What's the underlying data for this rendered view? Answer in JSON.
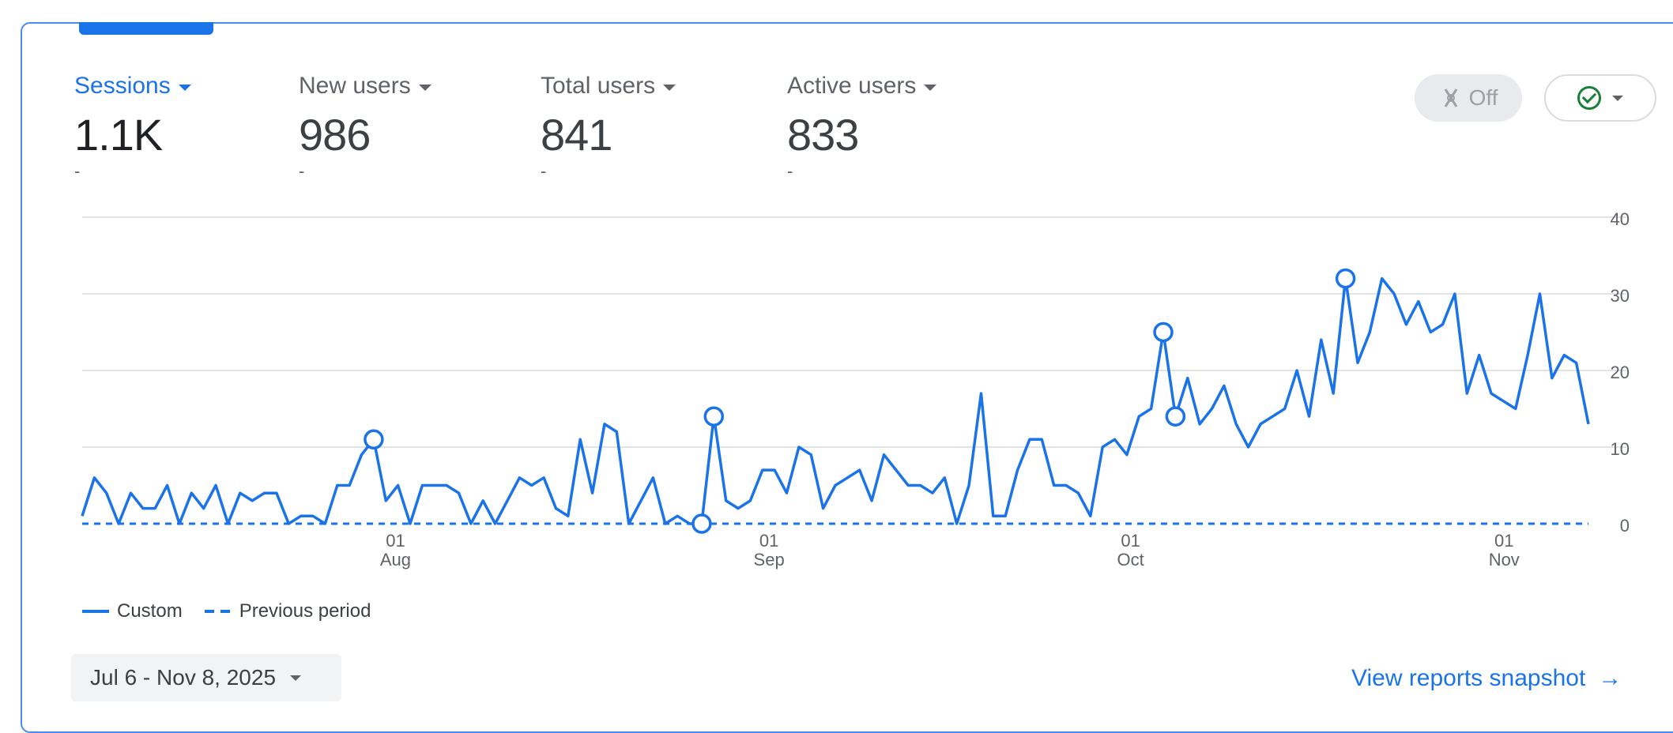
{
  "metrics": [
    {
      "label": "Sessions",
      "value": "1.1K",
      "change": "-",
      "active": true
    },
    {
      "label": "New users",
      "value": "986",
      "change": "-",
      "active": false
    },
    {
      "label": "Total users",
      "value": "841",
      "change": "-",
      "active": false
    },
    {
      "label": "Active users",
      "value": "833",
      "change": "-",
      "active": false
    }
  ],
  "toolbar": {
    "anomaly_toggle_label": "Off"
  },
  "colors": {
    "accent": "#1a73e8",
    "check": "#188038"
  },
  "chart_data": {
    "type": "line",
    "x_start": "2025-07-06",
    "x_end": "2025-11-08",
    "x_ticks": [
      {
        "day": "01",
        "month": "Aug"
      },
      {
        "day": "01",
        "month": "Sep"
      },
      {
        "day": "01",
        "month": "Oct"
      },
      {
        "day": "01",
        "month": "Nov"
      }
    ],
    "y_ticks": [
      "40",
      "30",
      "20",
      "10",
      "0"
    ],
    "ylim": [
      0,
      40
    ],
    "grid": true,
    "legend_position": "bottom-left",
    "series": [
      {
        "name": "Custom",
        "style": "solid",
        "values": [
          1,
          6,
          4,
          0,
          4,
          2,
          2,
          5,
          0,
          4,
          2,
          5,
          0,
          4,
          3,
          4,
          4,
          0,
          1,
          1,
          0,
          5,
          5,
          9,
          11,
          3,
          5,
          0,
          5,
          5,
          5,
          4,
          0,
          3,
          0,
          3,
          6,
          5,
          6,
          2,
          1,
          11,
          4,
          13,
          12,
          0,
          3,
          6,
          0,
          1,
          0,
          0,
          14,
          3,
          2,
          3,
          7,
          7,
          4,
          10,
          9,
          2,
          5,
          6,
          7,
          3,
          9,
          7,
          5,
          5,
          4,
          6,
          0,
          5,
          17,
          1,
          1,
          7,
          11,
          11,
          5,
          5,
          4,
          1,
          10,
          11,
          9,
          14,
          15,
          25,
          14,
          19,
          13,
          15,
          18,
          13,
          10,
          13,
          14,
          15,
          20,
          14,
          24,
          17,
          32,
          21,
          25,
          32,
          30,
          26,
          29,
          25,
          26,
          30,
          17,
          22,
          17,
          16,
          15,
          22,
          30,
          19,
          22,
          21,
          13
        ],
        "markers": [
          0,
          0,
          0,
          0,
          0,
          0,
          0,
          0,
          0,
          0,
          0,
          0,
          0,
          0,
          0,
          0,
          0,
          0,
          0,
          0,
          0,
          0,
          0,
          0,
          1,
          0,
          0,
          0,
          0,
          0,
          0,
          0,
          0,
          0,
          0,
          0,
          0,
          0,
          0,
          0,
          0,
          0,
          0,
          0,
          0,
          0,
          0,
          0,
          0,
          0,
          0,
          1,
          1,
          0,
          0,
          0,
          0,
          0,
          0,
          0,
          0,
          0,
          0,
          0,
          0,
          0,
          0,
          0,
          0,
          0,
          0,
          0,
          0,
          0,
          0,
          0,
          0,
          0,
          0,
          0,
          0,
          0,
          0,
          0,
          0,
          0,
          0,
          0,
          0,
          1,
          1,
          0,
          0,
          0,
          0,
          0,
          0,
          0,
          0,
          0,
          0,
          0,
          0,
          0,
          1,
          0,
          0,
          0,
          0,
          0,
          0,
          0,
          0,
          0,
          0,
          0,
          0,
          0,
          0,
          0,
          0,
          0,
          0,
          0,
          0,
          0
        ]
      },
      {
        "name": "Previous period",
        "style": "dashed",
        "values": [
          0
        ]
      }
    ]
  },
  "footer": {
    "date_range": "Jul 6 - Nov 8, 2025",
    "view_link": "View reports snapshot"
  }
}
